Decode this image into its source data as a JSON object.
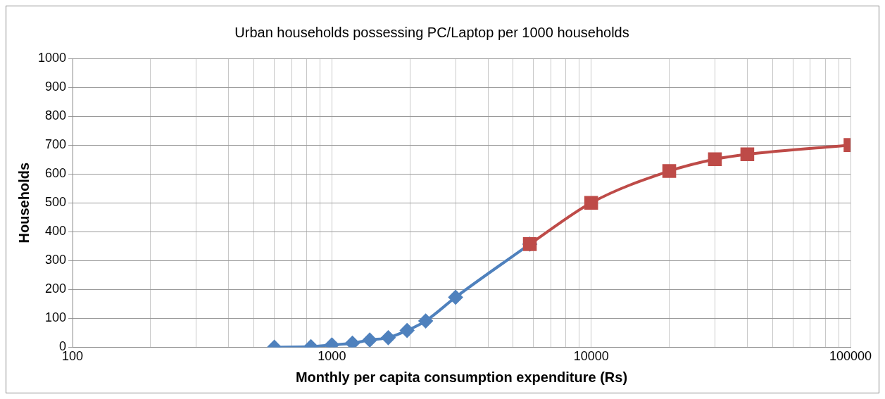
{
  "chart_data": {
    "type": "line",
    "title": "Urban households possessing PC/Laptop per 1000 households",
    "xlabel": "Monthly per capita consumption expenditure (Rs)",
    "ylabel": "Households",
    "log": "x",
    "grid": true,
    "legend": false,
    "xlim": [
      100,
      100000
    ],
    "xticks": [
      100,
      {
        "value": 200,
        "label": null
      },
      {
        "value": 300,
        "label": null
      },
      {
        "value": 400,
        "label": null
      },
      {
        "value": 500,
        "label": null
      },
      {
        "value": 600,
        "label": null
      },
      {
        "value": 700,
        "label": null
      },
      {
        "value": 800,
        "label": null
      },
      {
        "value": 900,
        "label": null
      },
      1000,
      {
        "value": 2000,
        "label": null
      },
      {
        "value": 3000,
        "label": null
      },
      {
        "value": 4000,
        "label": null
      },
      {
        "value": 5000,
        "label": null
      },
      {
        "value": 6000,
        "label": null
      },
      {
        "value": 7000,
        "label": null
      },
      {
        "value": 8000,
        "label": null
      },
      {
        "value": 9000,
        "label": null
      },
      10000,
      {
        "value": 20000,
        "label": null
      },
      {
        "value": 30000,
        "label": null
      },
      {
        "value": 40000,
        "label": null
      },
      {
        "value": 50000,
        "label": null
      },
      {
        "value": 60000,
        "label": null
      },
      {
        "value": 70000,
        "label": null
      },
      {
        "value": 80000,
        "label": null
      },
      {
        "value": 90000,
        "label": null
      },
      100000
    ],
    "ylim": [
      0,
      1000
    ],
    "yticks": [
      0,
      100,
      200,
      300,
      400,
      500,
      600,
      700,
      800,
      900,
      1000
    ],
    "series": [
      {
        "color": "#4f81bd",
        "marker": "diamond",
        "x": [
          600,
          830,
          1000,
          1200,
          1400,
          1650,
          1950,
          2300,
          3000,
          5800
        ],
        "values": [
          0,
          2,
          8,
          14,
          25,
          33,
          58,
          91,
          173,
          357
        ]
      },
      {
        "color": "#be4b48",
        "marker": "square",
        "x": [
          5800,
          10000,
          20000,
          30000,
          40000,
          100000
        ],
        "values": [
          357,
          500,
          610,
          651,
          668,
          700
        ]
      }
    ]
  }
}
